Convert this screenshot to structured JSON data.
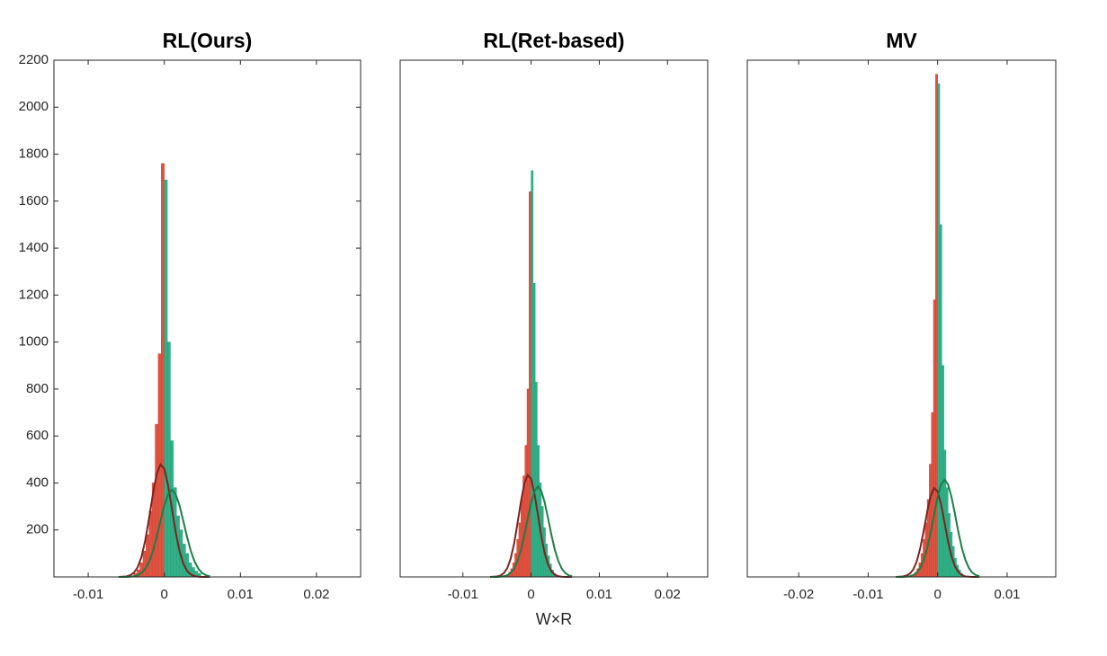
{
  "chart_data": [
    {
      "type": "histogram",
      "title": "RL(Ours)",
      "xlim": [
        -0.0145,
        0.0258
      ],
      "xticks": [
        -0.01,
        0,
        0.01,
        0.02
      ],
      "ylim": [
        0,
        2200
      ],
      "yticks": [
        200,
        400,
        600,
        800,
        1000,
        1200,
        1400,
        1600,
        1800,
        2000,
        2200
      ],
      "series": [
        {
          "color": "#d9412f",
          "bins": [
            -0.004,
            -0.0036,
            -0.0032,
            -0.0028,
            -0.0024,
            -0.002,
            -0.0016,
            -0.0012,
            -0.0008,
            -0.0004,
            0
          ],
          "values": [
            15,
            30,
            60,
            110,
            180,
            280,
            400,
            650,
            950,
            1760
          ]
        },
        {
          "color": "#1fa67a",
          "bins": [
            0,
            0.0004,
            0.0008,
            0.0012,
            0.0016,
            0.002,
            0.0024,
            0.0028,
            0.0032,
            0.0036,
            0.004,
            0.0044,
            0.0048
          ],
          "values": [
            1690,
            1000,
            580,
            380,
            260,
            200,
            140,
            100,
            60,
            40,
            25,
            15
          ]
        }
      ],
      "lines": [
        {
          "color": "#7a2520",
          "x": [
            -0.006,
            -0.0055,
            -0.005,
            -0.0045,
            -0.004,
            -0.0035,
            -0.003,
            -0.0025,
            -0.002,
            -0.0015,
            -0.001,
            -0.0005,
            0,
            0.0005,
            0.001,
            0.0015,
            0.002,
            0.0025,
            0.003,
            0.0035,
            0.004,
            0.0045,
            0.005,
            0.0055,
            0.006
          ],
          "values": [
            0,
            1,
            2,
            7,
            18,
            41,
            85,
            156,
            250,
            352,
            438,
            479,
            461,
            390,
            291,
            191,
            110,
            57,
            25,
            10,
            3,
            1,
            0,
            0,
            0
          ]
        },
        {
          "color": "#1e7d45",
          "x": [
            -0.006,
            -0.0055,
            -0.005,
            -0.0045,
            -0.004,
            -0.0035,
            -0.003,
            -0.0025,
            -0.002,
            -0.0015,
            -0.001,
            -0.0005,
            0,
            0.0005,
            0.001,
            0.0015,
            0.002,
            0.0025,
            0.003,
            0.0035,
            0.004,
            0.0045,
            0.005,
            0.0055,
            0.006
          ],
          "values": [
            0,
            0,
            0,
            1,
            3,
            7,
            16,
            34,
            64,
            109,
            169,
            238,
            304,
            352,
            370,
            352,
            304,
            238,
            169,
            109,
            64,
            34,
            16,
            7,
            3
          ]
        }
      ]
    },
    {
      "type": "histogram",
      "title": "RL(Ret-based)",
      "xlabel": "W×R",
      "xlim": [
        -0.0192,
        0.0259
      ],
      "xticks": [
        -0.01,
        0,
        0.01,
        0.02
      ],
      "ylim": [
        0,
        2200
      ],
      "series": [
        {
          "color": "#d9412f",
          "bins": [
            -0.0036,
            -0.0033,
            -0.003,
            -0.0027,
            -0.0024,
            -0.0021,
            -0.0018,
            -0.0015,
            -0.0012,
            -0.0009,
            -0.0006,
            -0.0003,
            0
          ],
          "values": [
            10,
            20,
            35,
            60,
            100,
            160,
            230,
            330,
            430,
            560,
            800,
            1640
          ]
        },
        {
          "color": "#1fa67a",
          "bins": [
            0,
            0.0003,
            0.0006,
            0.0009,
            0.0012,
            0.0015,
            0.0018,
            0.0021,
            0.0024,
            0.0027,
            0.003,
            0.0033,
            0.0036
          ],
          "values": [
            1730,
            1250,
            830,
            560,
            400,
            300,
            210,
            140,
            90,
            55,
            30,
            15
          ]
        }
      ],
      "lines": [
        {
          "color": "#7a2520",
          "x": [
            -0.006,
            -0.0055,
            -0.005,
            -0.0045,
            -0.004,
            -0.0035,
            -0.003,
            -0.0025,
            -0.002,
            -0.0015,
            -0.001,
            -0.0005,
            0,
            0.0005,
            0.001,
            0.0015,
            0.002,
            0.0025,
            0.003,
            0.0035,
            0.004,
            0.0045,
            0.005,
            0.0055,
            0.006
          ],
          "values": [
            0,
            1,
            2,
            6,
            16,
            37,
            77,
            141,
            227,
            319,
            397,
            434,
            418,
            353,
            264,
            173,
            100,
            52,
            23,
            9,
            3,
            1,
            0,
            0,
            0
          ]
        },
        {
          "color": "#1e7d45",
          "x": [
            -0.006,
            -0.0055,
            -0.005,
            -0.0045,
            -0.004,
            -0.0035,
            -0.003,
            -0.0025,
            -0.002,
            -0.0015,
            -0.001,
            -0.0005,
            0,
            0.0005,
            0.001,
            0.0015,
            0.002,
            0.0025,
            0.003,
            0.0035,
            0.004,
            0.0045,
            0.005,
            0.0055,
            0.006
          ],
          "values": [
            0,
            0,
            0,
            1,
            3,
            7,
            17,
            35,
            67,
            113,
            176,
            248,
            316,
            366,
            385,
            366,
            316,
            248,
            176,
            113,
            67,
            35,
            17,
            7,
            3
          ]
        }
      ]
    },
    {
      "type": "histogram",
      "title": "MV",
      "xlim": [
        -0.0274,
        0.017
      ],
      "xticks": [
        -0.02,
        -0.01,
        0,
        0.01
      ],
      "ylim": [
        0,
        2200
      ],
      "series": [
        {
          "color": "#d9412f",
          "bins": [
            -0.0036,
            -0.0033,
            -0.003,
            -0.0027,
            -0.0024,
            -0.0021,
            -0.0018,
            -0.0015,
            -0.0012,
            -0.0009,
            -0.0006,
            -0.0003,
            0
          ],
          "values": [
            10,
            20,
            35,
            60,
            100,
            160,
            230,
            330,
            480,
            700,
            1180,
            2140
          ]
        },
        {
          "color": "#1fa67a",
          "bins": [
            0,
            0.0003,
            0.0006,
            0.0009,
            0.0012,
            0.0015,
            0.0018,
            0.0021,
            0.0024,
            0.0027,
            0.003,
            0.0033,
            0.0036
          ],
          "values": [
            2100,
            1500,
            900,
            540,
            380,
            270,
            190,
            130,
            80,
            50,
            30,
            15
          ]
        }
      ],
      "lines": [
        {
          "color": "#7a2520",
          "x": [
            -0.006,
            -0.0055,
            -0.005,
            -0.0045,
            -0.004,
            -0.0035,
            -0.003,
            -0.0025,
            -0.002,
            -0.0015,
            -0.001,
            -0.0005,
            0,
            0.0005,
            0.001,
            0.0015,
            0.002,
            0.0025,
            0.003,
            0.0035,
            0.004,
            0.0045,
            0.005,
            0.0055,
            0.006
          ],
          "values": [
            0,
            1,
            2,
            6,
            14,
            32,
            67,
            123,
            198,
            278,
            346,
            378,
            364,
            308,
            230,
            151,
            87,
            45,
            20,
            8,
            2,
            1,
            0,
            0,
            0
          ]
        },
        {
          "color": "#1e7d45",
          "x": [
            -0.006,
            -0.0055,
            -0.005,
            -0.0045,
            -0.004,
            -0.0035,
            -0.003,
            -0.0025,
            -0.002,
            -0.0015,
            -0.001,
            -0.0005,
            0,
            0.0005,
            0.001,
            0.0015,
            0.002,
            0.0025,
            0.003,
            0.0035,
            0.004,
            0.0045,
            0.005,
            0.0055,
            0.006
          ],
          "values": [
            0,
            0,
            0,
            1,
            3,
            8,
            18,
            38,
            72,
            122,
            189,
            267,
            340,
            394,
            414,
            394,
            340,
            267,
            189,
            122,
            72,
            38,
            18,
            8,
            3
          ]
        }
      ]
    }
  ]
}
